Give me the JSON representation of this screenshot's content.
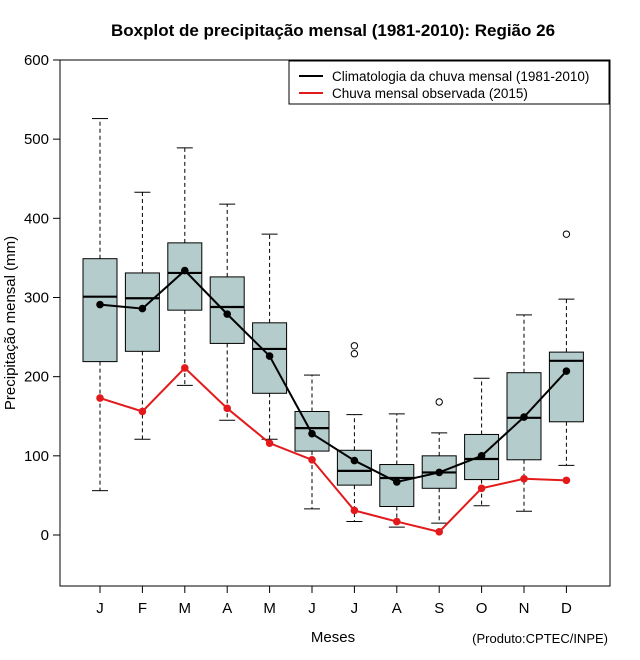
{
  "chart_data": {
    "type": "boxplot",
    "title": "Boxplot de precipitação mensal (1981-2010): Região 26",
    "xlabel": "Meses",
    "ylabel": "Precipitação mensal (mm)",
    "credit": "(Produto:CPTEC/INPE)",
    "ylim": [
      -65,
      600
    ],
    "yticks": [
      0,
      100,
      200,
      300,
      400,
      500,
      600
    ],
    "categories": [
      "J",
      "F",
      "M",
      "A",
      "M",
      "J",
      "J",
      "A",
      "S",
      "O",
      "N",
      "D"
    ],
    "boxes": [
      {
        "whisker_low": 56,
        "q1": 219,
        "median": 301,
        "q3": 349,
        "whisker_high": 526,
        "outliers": []
      },
      {
        "whisker_low": 121,
        "q1": 232,
        "median": 299,
        "q3": 331,
        "whisker_high": 433,
        "outliers": []
      },
      {
        "whisker_low": 189,
        "q1": 284,
        "median": 331,
        "q3": 369,
        "whisker_high": 489,
        "outliers": []
      },
      {
        "whisker_low": 145,
        "q1": 242,
        "median": 288,
        "q3": 326,
        "whisker_high": 418,
        "outliers": []
      },
      {
        "whisker_low": 121,
        "q1": 179,
        "median": 235,
        "q3": 268,
        "whisker_high": 380,
        "outliers": []
      },
      {
        "whisker_low": 33,
        "q1": 106,
        "median": 135,
        "q3": 156,
        "whisker_high": 202,
        "outliers": []
      },
      {
        "whisker_low": 17,
        "q1": 63,
        "median": 81,
        "q3": 107,
        "whisker_high": 152,
        "outliers": [
          229,
          239
        ]
      },
      {
        "whisker_low": 10,
        "q1": 36,
        "median": 72,
        "q3": 89,
        "whisker_high": 153,
        "outliers": []
      },
      {
        "whisker_low": 15,
        "q1": 59,
        "median": 79,
        "q3": 100,
        "whisker_high": 129,
        "outliers": [
          168
        ]
      },
      {
        "whisker_low": 37,
        "q1": 70,
        "median": 96,
        "q3": 127,
        "whisker_high": 198,
        "outliers": []
      },
      {
        "whisker_low": 30,
        "q1": 95,
        "median": 148,
        "q3": 205,
        "whisker_high": 278,
        "outliers": []
      },
      {
        "whisker_low": 88,
        "q1": 143,
        "median": 220,
        "q3": 231,
        "whisker_high": 298,
        "outliers": [
          380
        ]
      }
    ],
    "series": [
      {
        "name": "Climatologia da chuva mensal (1981-2010)",
        "color": "#000000",
        "values": [
          291,
          286,
          334,
          279,
          226,
          128,
          94,
          67,
          79,
          100,
          149,
          207
        ]
      },
      {
        "name": "Chuva mensal observada (2015)",
        "color": "#e31a1c",
        "values": [
          173,
          156,
          211,
          160,
          116,
          95,
          31,
          17,
          4,
          59,
          71,
          69
        ]
      }
    ],
    "box_fill": "#b5cccc",
    "legend_position": "top-right"
  }
}
